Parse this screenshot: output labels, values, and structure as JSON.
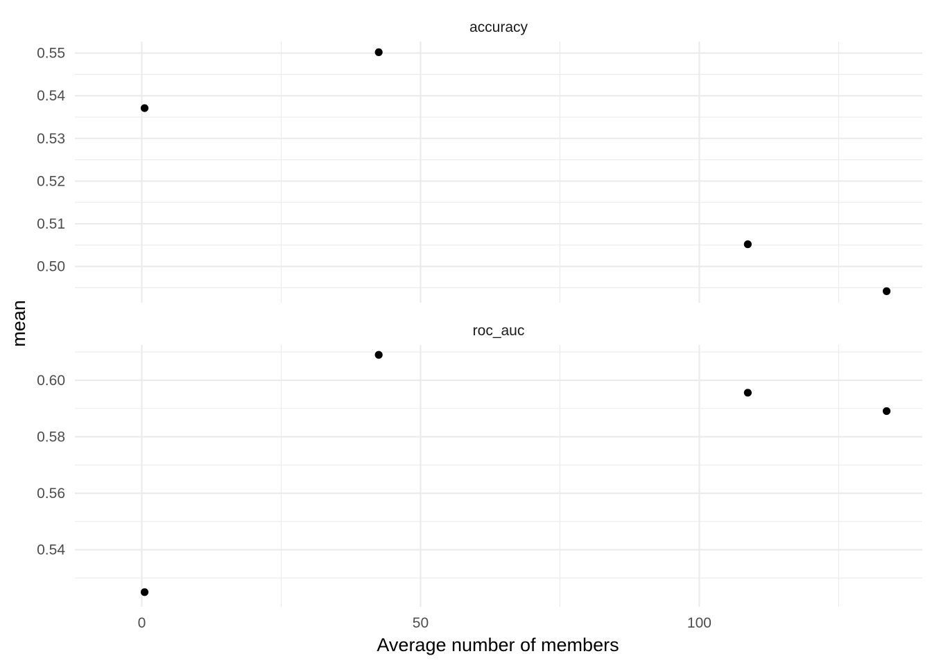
{
  "chart_data": {
    "type": "scatter",
    "xlabel": "Average number of members",
    "ylabel": "mean",
    "xlim": [
      -12,
      140
    ],
    "x_ticks": [
      0,
      50,
      100
    ],
    "x_tick_labels": [
      "0",
      "50",
      "100"
    ],
    "grid": true,
    "facets": [
      {
        "title": "accuracy",
        "ylim": [
          0.4915,
          0.5527
        ],
        "y_ticks": [
          0.5,
          0.51,
          0.52,
          0.53,
          0.54,
          0.55
        ],
        "y_tick_labels": [
          "0.50",
          "0.51",
          "0.52",
          "0.53",
          "0.54",
          "0.55"
        ],
        "points": [
          {
            "x": 0.5,
            "y": 0.5371
          },
          {
            "x": 42.5,
            "y": 0.5502
          },
          {
            "x": 108.7,
            "y": 0.5052
          },
          {
            "x": 133.6,
            "y": 0.4942
          }
        ]
      },
      {
        "title": "roc_auc",
        "ylim": [
          0.5198,
          0.6125
        ],
        "y_ticks": [
          0.54,
          0.56,
          0.58,
          0.6
        ],
        "y_tick_labels": [
          "0.54",
          "0.56",
          "0.58",
          "0.60"
        ],
        "points": [
          {
            "x": 0.5,
            "y": 0.525
          },
          {
            "x": 42.5,
            "y": 0.609
          },
          {
            "x": 108.7,
            "y": 0.5956
          },
          {
            "x": 133.6,
            "y": 0.5891
          }
        ]
      }
    ]
  }
}
